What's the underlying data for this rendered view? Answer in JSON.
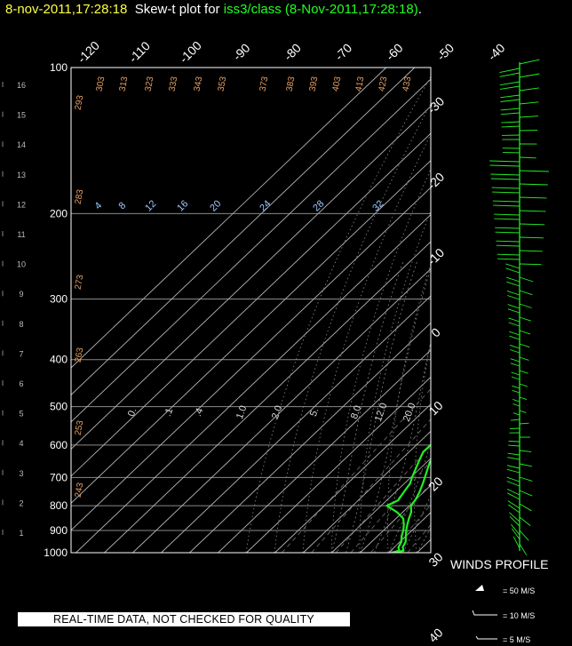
{
  "header": {
    "datetime": "8-nov-2011,17:28:18",
    "plot_label": "Skew-t plot for",
    "source_label": "iss3/class (8-Nov-2011,17:28:18)",
    "end_dot": "."
  },
  "chart_data": {
    "type": "line",
    "title": "Skew-t plot for iss3/class (8-Nov-2011,17:28:18)",
    "pressure_axis_hpa": [
      100,
      200,
      300,
      400,
      500,
      600,
      700,
      800,
      900,
      1000
    ],
    "height_axis_km": [
      1,
      2,
      3,
      4,
      5,
      6,
      7,
      8,
      9,
      10,
      11,
      12,
      13,
      14,
      15,
      16
    ],
    "temperature_labels_c": [
      -120,
      -110,
      -100,
      -90,
      -80,
      -70,
      -60,
      -50,
      -40,
      -30,
      -20,
      -10,
      0,
      10,
      20,
      30,
      40
    ],
    "dry_adiabat_labels_k": [
      303,
      313,
      323,
      333,
      343,
      353,
      363,
      373,
      383,
      393,
      403,
      413,
      423,
      433,
      293,
      283,
      273,
      263,
      253,
      243
    ],
    "mixing_ratio_labels_top": [
      4,
      8,
      12,
      16,
      20,
      24,
      28,
      32
    ],
    "mixing_ratio_labels_lower": [
      "0.",
      ".1",
      ".4",
      "1.0",
      "2.0",
      "5.",
      "8.0",
      "12.0",
      "20.0"
    ],
    "series": [
      {
        "name": "temperature",
        "color": "#22ee22",
        "p": [
          1000,
          990,
          975,
          950,
          925,
          900,
          875,
          850,
          825,
          800,
          780,
          750,
          720,
          700,
          650,
          620,
          600,
          580,
          560,
          540,
          520,
          500,
          450,
          400,
          350,
          320,
          300,
          280,
          260,
          250,
          240,
          230,
          220,
          210,
          200,
          190,
          180,
          170,
          160,
          150,
          140,
          130,
          125,
          120,
          115,
          110,
          105,
          100
        ],
        "t": [
          12.5,
          14.5,
          13.0,
          12.0,
          10.0,
          8.0,
          6.2,
          4.5,
          3.0,
          0.5,
          0.0,
          -1.5,
          -3.5,
          -5.0,
          -9.0,
          -10.0,
          -13.0,
          -14.5,
          -16.5,
          -19.0,
          -21.5,
          -24.0,
          -31.0,
          -37.5,
          -45.0,
          -50.0,
          -53.0,
          -56.5,
          -60.0,
          -62.0,
          -64.0,
          -66.5,
          -68.5,
          -71.0,
          -73.5,
          -76.0,
          -78.5,
          -81.0,
          -83.5,
          -86.0,
          -88.0,
          -90.0,
          -90.5,
          -90.0,
          -89.5,
          -89.0,
          -88.0,
          -87.5
        ]
      },
      {
        "name": "dewpoint",
        "color": "#22ee22",
        "p": [
          1000,
          990,
          975,
          950,
          925,
          900,
          875,
          850,
          825,
          800,
          780,
          750,
          720,
          700,
          650,
          620,
          600,
          580,
          560,
          540,
          520,
          500,
          450,
          400,
          350,
          320,
          300,
          280,
          270,
          265,
          260,
          255,
          250,
          245,
          240,
          235,
          230,
          225,
          220,
          215,
          210,
          205,
          200,
          195,
          190,
          185,
          180,
          170,
          160,
          150,
          140,
          130,
          120,
          110,
          100
        ],
        "td": [
          11.0,
          13.0,
          11.5,
          10.5,
          8.5,
          7.0,
          5.0,
          2.5,
          -2.0,
          -8.0,
          -6.0,
          -7.0,
          -8.0,
          -9.5,
          -13.0,
          -15.0,
          -15.0,
          -15.0,
          -19.0,
          -21.0,
          -24.0,
          -27.0,
          -35.0,
          -44.0,
          -52.0,
          -56.0,
          -58.0,
          -60.0,
          -62.0,
          -65.0,
          -70.0,
          -74.0,
          -78.0,
          -80.0,
          -82.0,
          -81.0,
          -80.0,
          -80.0,
          -80.0,
          -80.5,
          -81.5,
          -83.0,
          -85.0,
          -87.0,
          -89.0,
          -92.0,
          -94.0,
          -96.0,
          -97.0,
          -97.5,
          -97.0,
          -96.0,
          -96.0,
          -95.0,
          -93.5
        ]
      }
    ],
    "wind_legend": [
      "= 50 M/S",
      "= 10 M/S",
      "= 5 M/S"
    ]
  },
  "footer": {
    "quality_note": "REAL-TIME DATA, NOT CHECKED FOR QUALITY",
    "winds_profile_label": "WINDS PROFILE"
  }
}
